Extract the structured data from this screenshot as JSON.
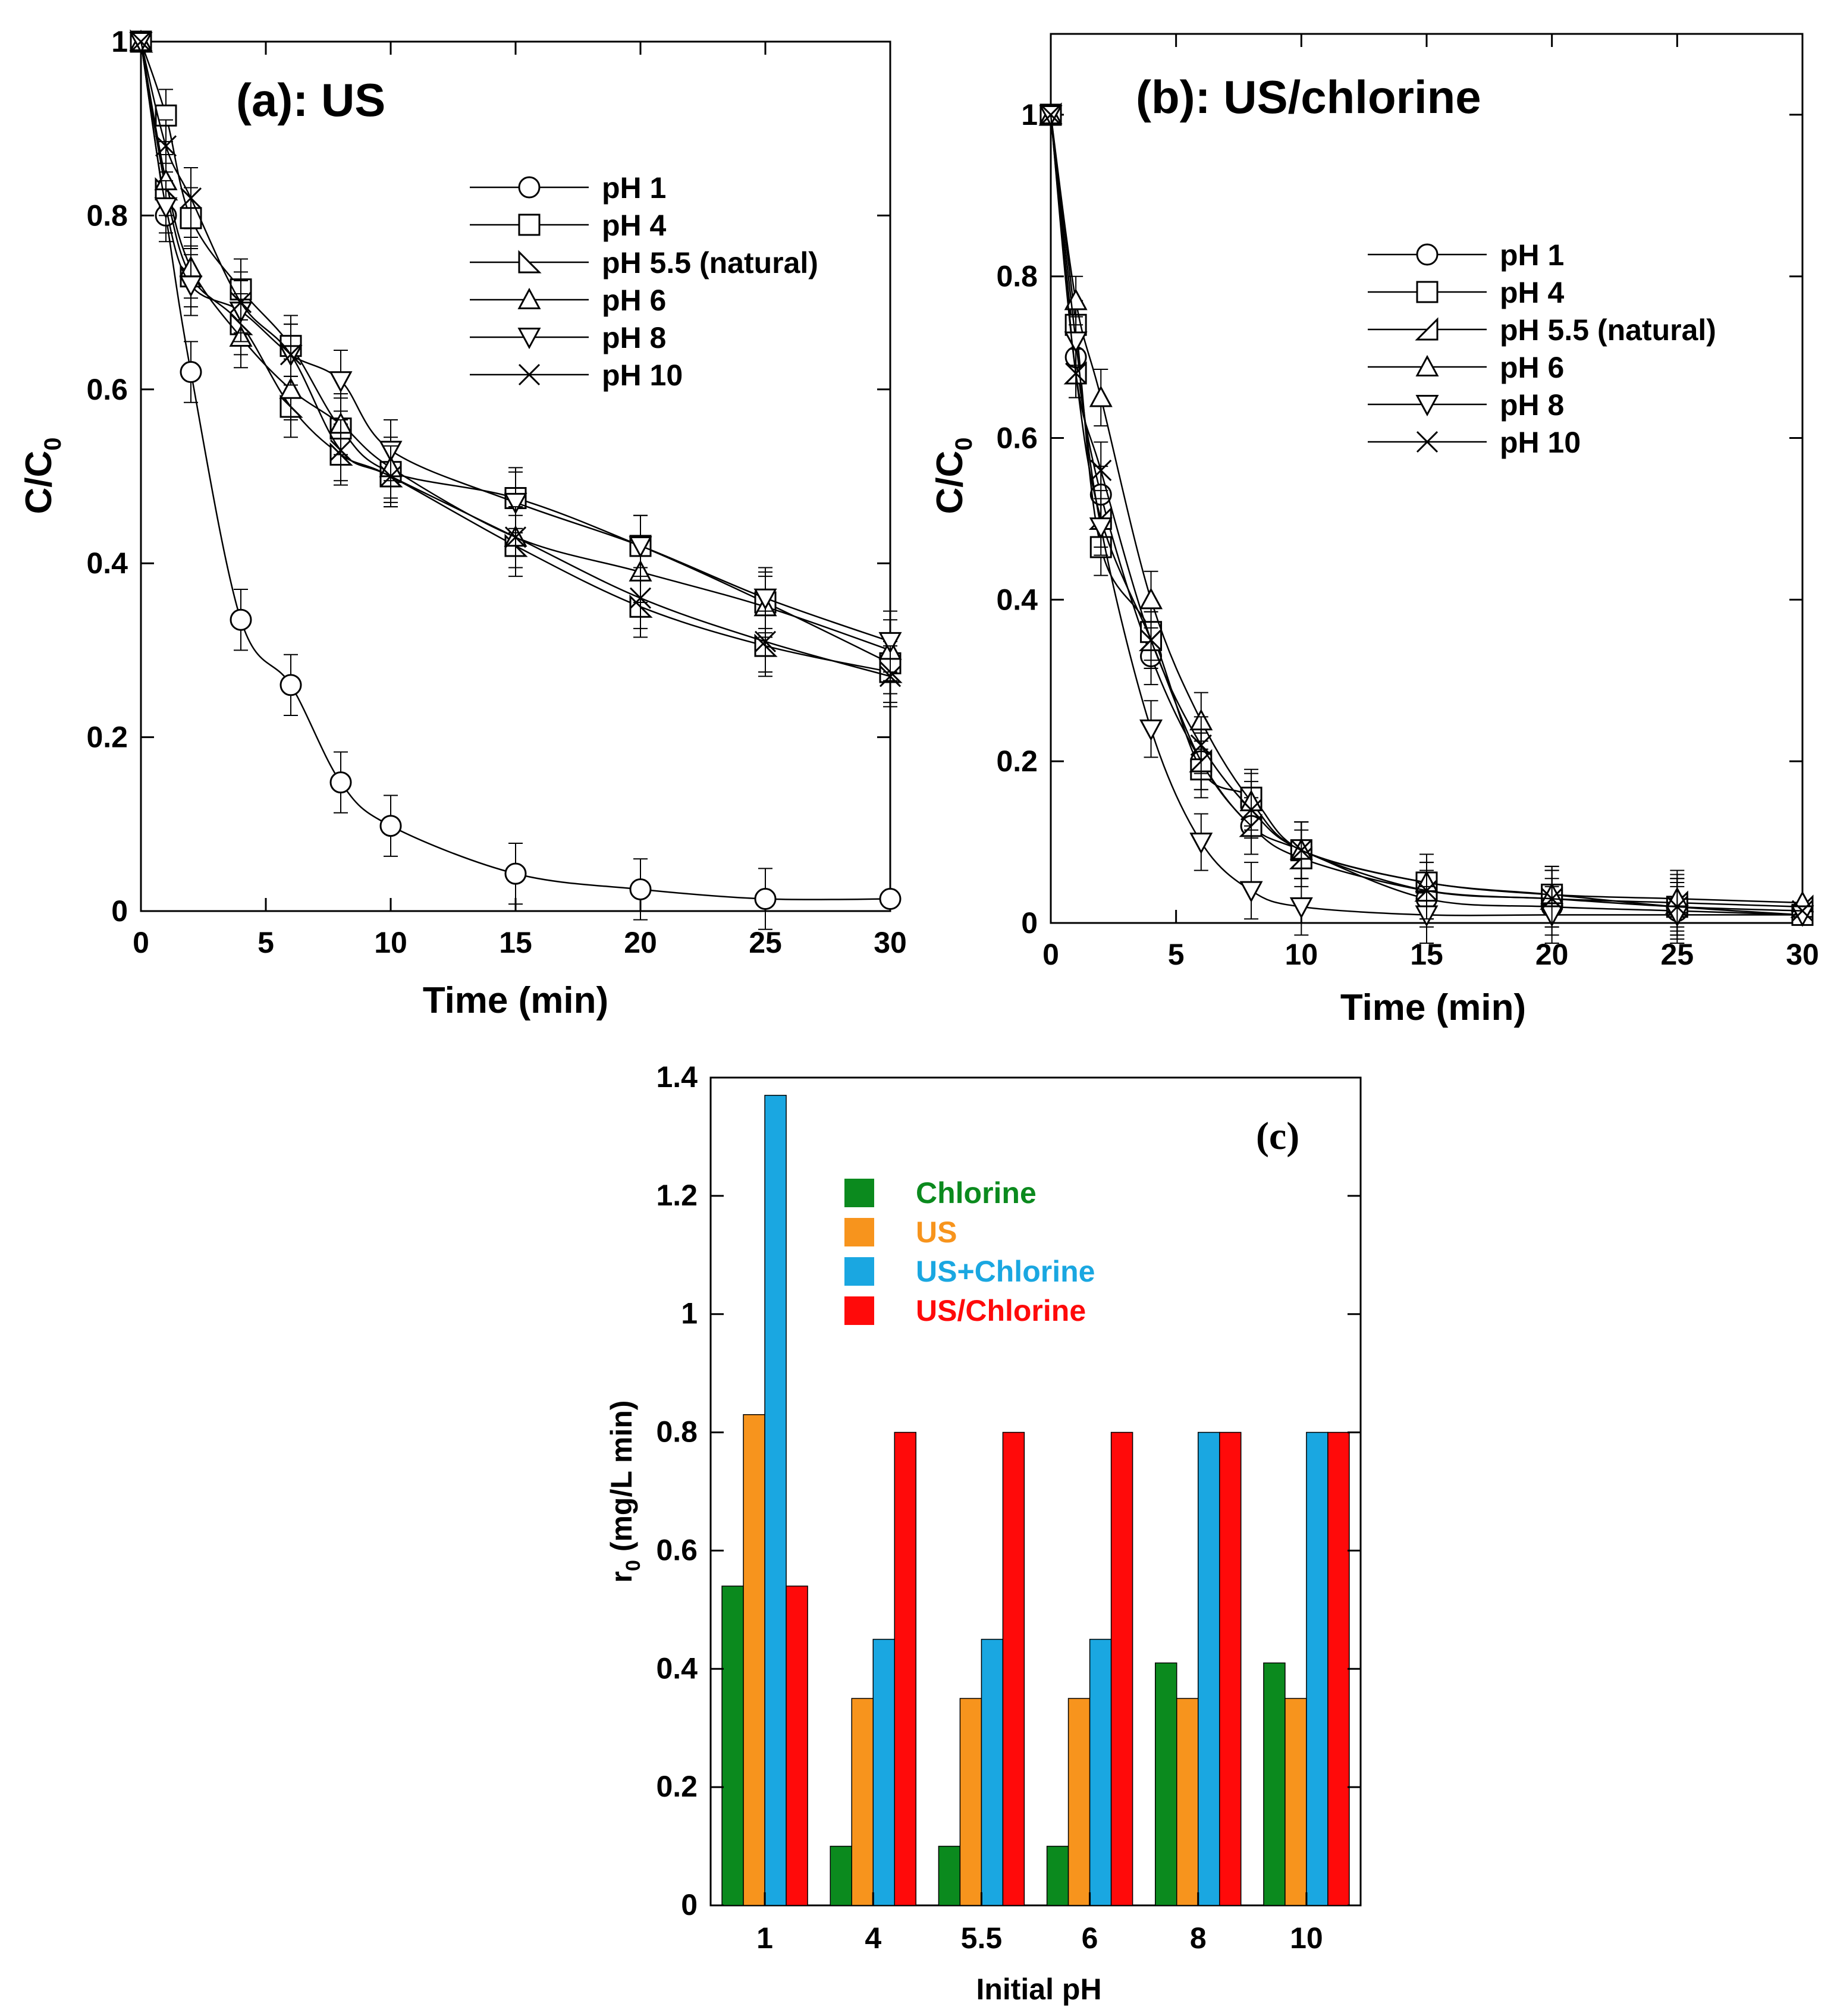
{
  "chart_data": [
    {
      "type": "line",
      "title": "(a): US",
      "xlabel": "Time (min)",
      "ylabel": "C/C",
      "ylabel_sub": "0",
      "xlim": [
        0,
        30
      ],
      "ylim": [
        0,
        1
      ],
      "xticks": [
        "0",
        "5",
        "10",
        "15",
        "20",
        "25",
        "30"
      ],
      "yticks": [
        "0",
        "0.2",
        "0.4",
        "0.6",
        "0.8",
        "1"
      ],
      "x": [
        0,
        1,
        2,
        4,
        6,
        8,
        10,
        15,
        20,
        25,
        30
      ],
      "series": [
        {
          "name": "pH 1",
          "marker": "circle",
          "values": [
            1,
            0.8,
            0.62,
            0.335,
            0.26,
            0.148,
            0.098,
            0.043,
            0.025,
            0.014,
            0.014
          ],
          "err": [
            0,
            0.03,
            0.035,
            0.035,
            0.035,
            0.035,
            0.035,
            0.035,
            0.035,
            0.035,
            0
          ]
        },
        {
          "name": "pH 4",
          "marker": "square",
          "values": [
            1,
            0.915,
            0.797,
            0.715,
            0.65,
            0.555,
            0.505,
            0.475,
            0.42,
            0.355,
            0.285
          ],
          "err": [
            0,
            0.03,
            0.035,
            0.035,
            0.035,
            0.035,
            0.035,
            0.035,
            0.035,
            0.035,
            0.035
          ]
        },
        {
          "name": "pH 5.5 (natural)",
          "marker": "tri-right",
          "values": [
            1,
            0.83,
            0.73,
            0.675,
            0.58,
            0.525,
            0.5,
            0.42,
            0.35,
            0.305,
            0.275
          ],
          "err": [
            0,
            0.03,
            0.035,
            0.035,
            0.035,
            0.035,
            0.035,
            0.035,
            0.035,
            0.035,
            0.035
          ]
        },
        {
          "name": "pH 6",
          "marker": "tri-up",
          "values": [
            1,
            0.84,
            0.74,
            0.66,
            0.6,
            0.56,
            0.51,
            0.43,
            0.39,
            0.35,
            0.3
          ],
          "err": [
            0,
            0.03,
            0.035,
            0.035,
            0.035,
            0.035,
            0.035,
            0.035,
            0.035,
            0.035,
            0.035
          ]
        },
        {
          "name": "pH 8",
          "marker": "tri-down",
          "values": [
            1,
            0.81,
            0.72,
            0.69,
            0.64,
            0.61,
            0.53,
            0.47,
            0.42,
            0.36,
            0.31
          ],
          "err": [
            0,
            0.03,
            0.035,
            0.035,
            0.035,
            0.035,
            0.035,
            0.035,
            0.035,
            0.035,
            0.035
          ]
        },
        {
          "name": "pH 10",
          "marker": "x",
          "values": [
            1,
            0.88,
            0.82,
            0.7,
            0.64,
            0.53,
            0.5,
            0.43,
            0.36,
            0.31,
            0.27
          ],
          "err": [
            0,
            0.03,
            0.035,
            0.035,
            0.035,
            0.035,
            0.035,
            0.035,
            0.035,
            0.035,
            0.035
          ]
        }
      ]
    },
    {
      "type": "line",
      "title": "(b): US/chlorine",
      "xlabel": "Time (min)",
      "ylabel": "C/C",
      "ylabel_sub": "0",
      "xlim": [
        0,
        30
      ],
      "ylim": [
        0,
        1.1
      ],
      "xticks": [
        "0",
        "5",
        "10",
        "15",
        "20",
        "25",
        "30"
      ],
      "yticks": [
        "0",
        "0.2",
        "0.4",
        "0.6",
        "0.8",
        "1"
      ],
      "x": [
        0,
        1,
        2,
        4,
        6,
        8,
        10,
        15,
        20,
        25,
        30
      ],
      "series": [
        {
          "name": "pH 1",
          "marker": "circle",
          "values": [
            1,
            0.7,
            0.53,
            0.33,
            0.2,
            0.12,
            0.09,
            0.03,
            0.02,
            0.015,
            0.01
          ],
          "err": [
            0,
            0.03,
            0.035,
            0.035,
            0.035,
            0.035,
            0.035,
            0.035,
            0.035,
            0.035,
            0
          ]
        },
        {
          "name": "pH 4",
          "marker": "square",
          "values": [
            1,
            0.74,
            0.465,
            0.36,
            0.19,
            0.155,
            0.09,
            0.05,
            0.035,
            0.02,
            0.01
          ],
          "err": [
            0,
            0.03,
            0.035,
            0.035,
            0.035,
            0.035,
            0.035,
            0.035,
            0.035,
            0.035,
            0
          ]
        },
        {
          "name": "pH 5.5 (natural)",
          "marker": "tri-left",
          "values": [
            1,
            0.68,
            0.5,
            0.35,
            0.2,
            0.12,
            0.08,
            0.04,
            0.03,
            0.025,
            0.02
          ],
          "err": [
            0,
            0.03,
            0.035,
            0.035,
            0.035,
            0.035,
            0.035,
            0.035,
            0.035,
            0.035,
            0
          ]
        },
        {
          "name": "pH 6",
          "marker": "tri-up",
          "values": [
            1,
            0.77,
            0.65,
            0.4,
            0.25,
            0.15,
            0.09,
            0.05,
            0.035,
            0.03,
            0.025
          ],
          "err": [
            0,
            0.03,
            0.035,
            0.035,
            0.035,
            0.035,
            0.035,
            0.035,
            0.035,
            0.035,
            0
          ]
        },
        {
          "name": "pH 8",
          "marker": "tri-down",
          "values": [
            1,
            0.72,
            0.49,
            0.24,
            0.1,
            0.04,
            0.02,
            0.01,
            0.01,
            0.01,
            0.01
          ],
          "err": [
            0,
            0.03,
            0.035,
            0.035,
            0.035,
            0.035,
            0.035,
            0.035,
            0.035,
            0.035,
            0
          ]
        },
        {
          "name": "pH 10",
          "marker": "x",
          "values": [
            1,
            0.68,
            0.56,
            0.35,
            0.22,
            0.14,
            0.09,
            0.04,
            0.03,
            0.02,
            0.015
          ],
          "err": [
            0,
            0.03,
            0.035,
            0.035,
            0.035,
            0.035,
            0.035,
            0.035,
            0.035,
            0.035,
            0
          ]
        }
      ]
    },
    {
      "type": "bar",
      "title": "(c)",
      "xlabel": "Initial pH",
      "ylabel": "r",
      "ylabel_sub": "0",
      "ylabel_rest": " (mg/L min)",
      "ylim": [
        0,
        1.4
      ],
      "yticks": [
        "0",
        "0.2",
        "0.4",
        "0.6",
        "0.8",
        "1",
        "1.2",
        "1.4"
      ],
      "categories": [
        "1",
        "4",
        "5.5",
        "6",
        "8",
        "10"
      ],
      "series": [
        {
          "name": "Chlorine",
          "color": "#0b8a1e",
          "values": [
            0.54,
            0.1,
            0.1,
            0.1,
            0.41,
            0.41
          ]
        },
        {
          "name": "US",
          "color": "#f7941d",
          "values": [
            0.83,
            0.35,
            0.35,
            0.35,
            0.35,
            0.35
          ]
        },
        {
          "name": "US+Chlorine",
          "color": "#1aa7e1",
          "values": [
            1.37,
            0.45,
            0.45,
            0.45,
            0.8,
            0.8
          ]
        },
        {
          "name": "US/Chlorine",
          "color": "#ff0a0a",
          "values": [
            0.54,
            0.8,
            0.8,
            0.8,
            0.8,
            0.8
          ]
        }
      ]
    }
  ]
}
